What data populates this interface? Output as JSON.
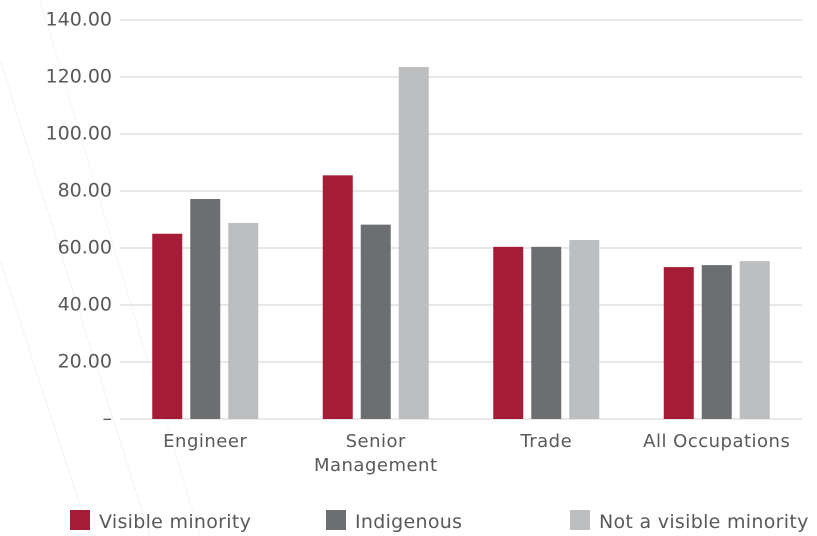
{
  "chart_data": {
    "type": "bar",
    "categories": [
      "Engineer",
      "Senior Management",
      "Trade",
      "All Occupations"
    ],
    "series": [
      {
        "name": "Visible minority",
        "color": "#a51c36",
        "values": [
          65,
          85.5,
          60.4,
          53.3
        ]
      },
      {
        "name": "Indigenous",
        "color": "#6d6e71",
        "values": [
          77.2,
          68.2,
          60.4,
          54
        ]
      },
      {
        "name": "Not a visible minority",
        "color": "#bcbec0",
        "values": [
          68.8,
          123.5,
          62.8,
          55.4
        ]
      }
    ],
    "ylim": [
      0,
      140
    ],
    "yticks": [
      {
        "value": 0,
        "label": "–"
      },
      {
        "value": 20,
        "label": "20.00"
      },
      {
        "value": 40,
        "label": "40.00"
      },
      {
        "value": 60,
        "label": "60.00"
      },
      {
        "value": 80,
        "label": "80.00"
      },
      {
        "value": 100,
        "label": "100.00"
      },
      {
        "value": 120,
        "label": "120.00"
      },
      {
        "value": 140,
        "label": "140.00"
      }
    ],
    "grid": true,
    "legend": "bottom"
  }
}
